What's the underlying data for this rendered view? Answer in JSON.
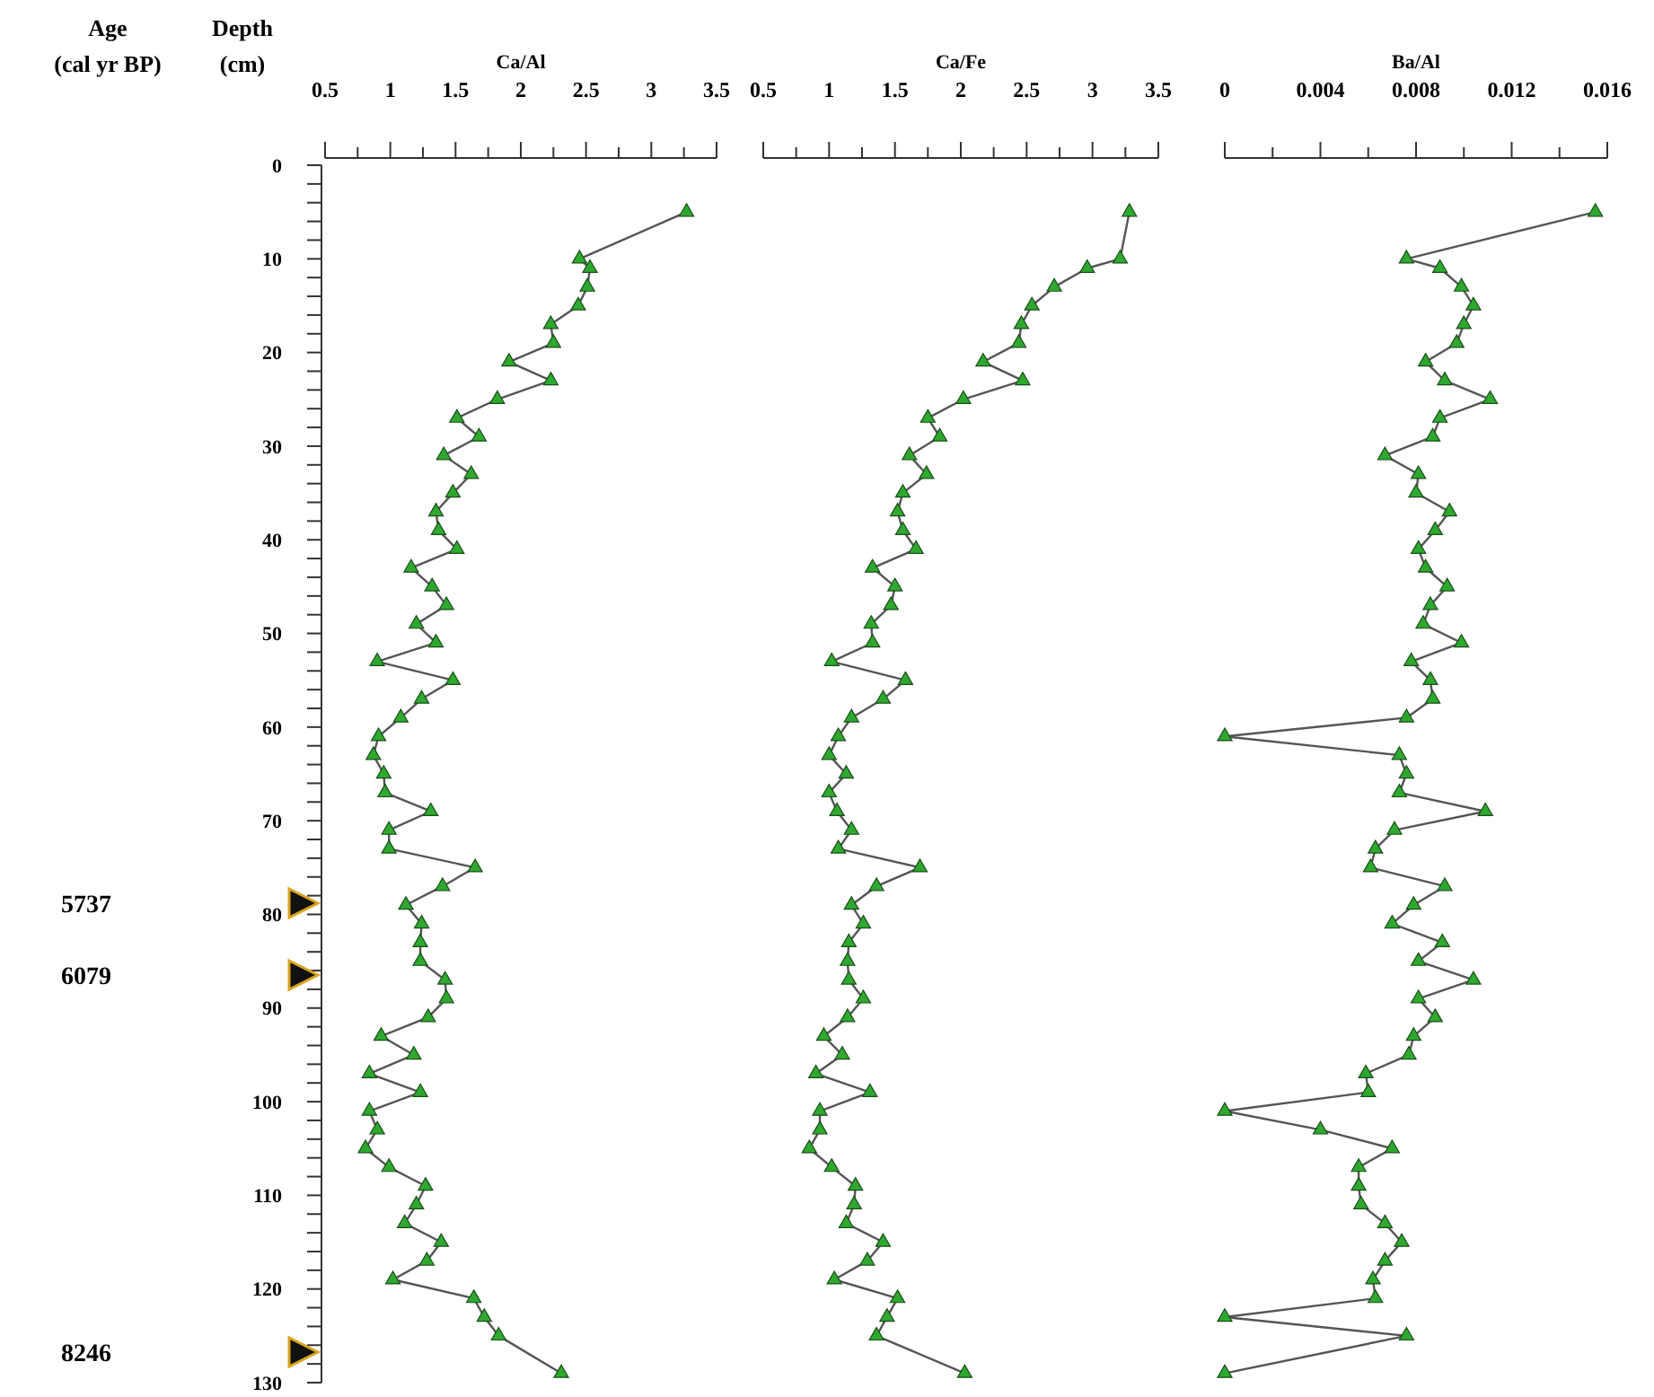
{
  "chart_data": [
    {
      "type": "line",
      "xlabel": "Ca/Al",
      "ylabel": "Depth (cm)",
      "marker": "triangle",
      "annotations": [
        "Age (cal yr BP)",
        "5737",
        "6079",
        "8246"
      ],
      "xlim": [
        0.5,
        3.5
      ],
      "xticks": [
        0.5,
        {
          "value": 0.75,
          "label": null
        },
        1,
        {
          "value": 1.25,
          "label": null
        },
        1.5,
        {
          "value": 1.75,
          "label": null
        },
        2,
        {
          "value": 2.25,
          "label": null
        },
        2.5,
        {
          "value": 2.75,
          "label": null
        },
        3,
        {
          "value": 3.25,
          "label": null
        },
        3.5
      ],
      "ylim": [
        130,
        0
      ],
      "yticks": [
        0,
        {
          "value": 2,
          "label": null
        },
        {
          "value": 4,
          "label": null
        },
        {
          "value": 6,
          "label": null
        },
        {
          "value": 8,
          "label": null
        },
        10,
        {
          "value": 12,
          "label": null
        },
        {
          "value": 14,
          "label": null
        },
        {
          "value": 16,
          "label": null
        },
        {
          "value": 18,
          "label": null
        },
        20,
        {
          "value": 22,
          "label": null
        },
        {
          "value": 24,
          "label": null
        },
        {
          "value": 26,
          "label": null
        },
        {
          "value": 28,
          "label": null
        },
        30,
        {
          "value": 32,
          "label": null
        },
        {
          "value": 34,
          "label": null
        },
        {
          "value": 36,
          "label": null
        },
        {
          "value": 38,
          "label": null
        },
        40,
        {
          "value": 42,
          "label": null
        },
        {
          "value": 44,
          "label": null
        },
        {
          "value": 46,
          "label": null
        },
        {
          "value": 48,
          "label": null
        },
        50,
        {
          "value": 52,
          "label": null
        },
        {
          "value": 54,
          "label": null
        },
        {
          "value": 56,
          "label": null
        },
        {
          "value": 58,
          "label": null
        },
        60,
        {
          "value": 62,
          "label": null
        },
        {
          "value": 64,
          "label": null
        },
        {
          "value": 66,
          "label": null
        },
        {
          "value": 68,
          "label": null
        },
        70,
        {
          "value": 72,
          "label": null
        },
        {
          "value": 74,
          "label": null
        },
        {
          "value": 76,
          "label": null
        },
        {
          "value": 78,
          "label": null
        },
        80,
        {
          "value": 82,
          "label": null
        },
        {
          "value": 84,
          "label": null
        },
        {
          "value": 86,
          "label": null
        },
        {
          "value": 88,
          "label": null
        },
        90,
        {
          "value": 92,
          "label": null
        },
        {
          "value": 94,
          "label": null
        },
        {
          "value": 96,
          "label": null
        },
        {
          "value": 98,
          "label": null
        },
        100,
        {
          "value": 102,
          "label": null
        },
        {
          "value": 104,
          "label": null
        },
        {
          "value": 106,
          "label": null
        },
        {
          "value": 108,
          "label": null
        },
        110,
        {
          "value": 112,
          "label": null
        },
        {
          "value": 114,
          "label": null
        },
        {
          "value": 116,
          "label": null
        },
        {
          "value": 118,
          "label": null
        },
        120,
        {
          "value": 122,
          "label": null
        },
        {
          "value": 124,
          "label": null
        },
        {
          "value": 126,
          "label": null
        },
        {
          "value": 128,
          "label": null
        },
        130
      ],
      "series": [
        {
          "color": "#2ea82e",
          "x": [
            3.27,
            2.45,
            2.53,
            2.51,
            2.44,
            2.23,
            2.25,
            1.91,
            2.23,
            1.82,
            1.51,
            1.68,
            1.41,
            1.62,
            1.48,
            1.35,
            1.37,
            1.51,
            1.16,
            1.32,
            1.43,
            1.2,
            1.35,
            0.9,
            1.48,
            1.24,
            1.08,
            0.91,
            0.87,
            0.95,
            0.96,
            1.31,
            0.99,
            0.99,
            1.65,
            1.4,
            1.12,
            1.24,
            1.23,
            1.23,
            1.42,
            1.43,
            1.29,
            0.93,
            1.18,
            0.84,
            1.23,
            0.84,
            0.9,
            0.81,
            0.99,
            1.27,
            1.2,
            1.11,
            1.39,
            1.28,
            1.02,
            1.64,
            1.72,
            1.83,
            2.31
          ],
          "values": [
            5,
            10,
            11,
            13,
            15,
            17,
            19,
            21,
            23,
            25,
            27,
            29,
            31,
            33,
            35,
            37,
            39,
            41,
            43,
            45,
            47,
            49,
            51,
            53,
            55,
            57,
            59,
            61,
            63,
            65,
            67,
            69,
            71,
            73,
            75,
            77,
            79,
            81,
            83,
            85,
            87,
            89,
            91,
            93,
            95,
            97,
            99,
            101,
            103,
            105,
            107,
            109,
            111,
            113,
            115,
            117,
            119,
            121,
            123,
            125,
            129
          ]
        }
      ]
    },
    {
      "type": "line",
      "xlabel": "Ca/Fe",
      "marker": "triangle",
      "tick_labels": "x",
      "xlim": [
        0.5,
        3.5
      ],
      "xticks": [
        0.5,
        {
          "value": 0.75,
          "label": null
        },
        1,
        {
          "value": 1.25,
          "label": null
        },
        1.5,
        {
          "value": 1.75,
          "label": null
        },
        2,
        {
          "value": 2.25,
          "label": null
        },
        2.5,
        {
          "value": 2.75,
          "label": null
        },
        3,
        {
          "value": 3.25,
          "label": null
        },
        3.5
      ],
      "ylim": [
        130,
        0
      ],
      "series": [
        {
          "color": "#2ea82e",
          "x": [
            3.28,
            3.21,
            2.96,
            2.71,
            2.54,
            2.46,
            2.44,
            2.17,
            2.47,
            2.02,
            1.75,
            1.84,
            1.61,
            1.74,
            1.56,
            1.52,
            1.56,
            1.66,
            1.33,
            1.5,
            1.47,
            1.32,
            1.33,
            1.02,
            1.58,
            1.41,
            1.17,
            1.07,
            1.0,
            1.13,
            1.0,
            1.06,
            1.17,
            1.07,
            1.69,
            1.36,
            1.17,
            1.26,
            1.15,
            1.14,
            1.15,
            1.26,
            1.14,
            0.96,
            1.1,
            0.9,
            1.31,
            0.93,
            0.93,
            0.85,
            1.02,
            1.2,
            1.19,
            1.13,
            1.41,
            1.29,
            1.04,
            1.52,
            1.44,
            1.36,
            2.03
          ],
          "values": [
            5,
            10,
            11,
            13,
            15,
            17,
            19,
            21,
            23,
            25,
            27,
            29,
            31,
            33,
            35,
            37,
            39,
            41,
            43,
            45,
            47,
            49,
            51,
            53,
            55,
            57,
            59,
            61,
            63,
            65,
            67,
            69,
            71,
            73,
            75,
            77,
            79,
            81,
            83,
            85,
            87,
            89,
            91,
            93,
            95,
            97,
            99,
            101,
            103,
            105,
            107,
            109,
            111,
            113,
            115,
            117,
            119,
            121,
            123,
            125,
            129
          ]
        }
      ]
    },
    {
      "type": "line",
      "xlabel": "Ba/Al",
      "marker": "triangle",
      "tick_labels": "x",
      "xlim": [
        0,
        0.016
      ],
      "xticks": [
        0,
        {
          "value": 0.002,
          "label": null
        },
        0.004,
        {
          "value": 0.006,
          "label": null
        },
        0.008,
        {
          "value": 0.01,
          "label": null
        },
        0.012,
        {
          "value": 0.014,
          "label": null
        },
        0.016
      ],
      "ylim": [
        130,
        0
      ],
      "series": [
        {
          "color": "#2ea82e",
          "x": [
            0.0155,
            0.0076,
            0.009,
            0.0099,
            0.0104,
            0.01,
            0.0097,
            0.0084,
            0.0092,
            0.0111,
            0.009,
            0.0087,
            0.0067,
            0.0081,
            0.008,
            0.0094,
            0.0088,
            0.0081,
            0.0084,
            0.0093,
            0.0086,
            0.0083,
            0.0099,
            0.0078,
            0.0086,
            0.0087,
            0.0076,
            0,
            0.0073,
            0.0076,
            0.0073,
            0.0109,
            0.0071,
            0.0063,
            0.0061,
            0.0092,
            0.0079,
            0.007,
            0.0091,
            0.0081,
            0.0104,
            0.0081,
            0.0088,
            0.0079,
            0.0077,
            0.0059,
            0.006,
            0,
            0.004,
            0.007,
            0.0056,
            0.0056,
            0.0057,
            0.0067,
            0.0074,
            0.0067,
            0.0062,
            0.0063,
            0,
            0.0076,
            0
          ],
          "values": [
            5,
            10,
            11,
            13,
            15,
            17,
            19,
            21,
            23,
            25,
            27,
            29,
            31,
            33,
            35,
            37,
            39,
            41,
            43,
            45,
            47,
            49,
            51,
            53,
            55,
            57,
            59,
            61,
            63,
            65,
            67,
            69,
            71,
            73,
            75,
            77,
            79,
            81,
            83,
            85,
            87,
            89,
            91,
            93,
            95,
            97,
            99,
            101,
            103,
            105,
            107,
            109,
            111,
            113,
            115,
            117,
            119,
            121,
            123,
            125,
            129
          ]
        }
      ]
    }
  ]
}
